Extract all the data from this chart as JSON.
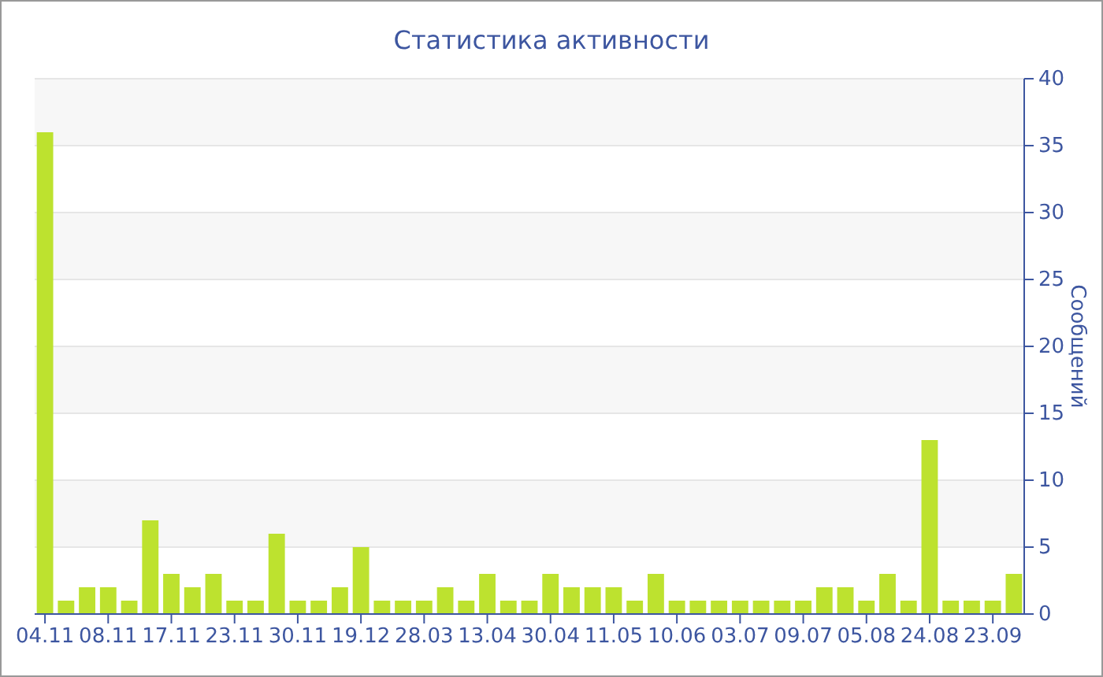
{
  "chart_data": {
    "type": "bar",
    "title": "Статистика активности",
    "ylabel": "Сообщений",
    "categories": [
      "04.11",
      null,
      null,
      "08.11",
      null,
      null,
      "17.11",
      null,
      null,
      "23.11",
      null,
      null,
      "30.11",
      null,
      null,
      "19.12",
      null,
      null,
      "28.03",
      null,
      null,
      "13.04",
      null,
      null,
      "30.04",
      null,
      null,
      "11.05",
      null,
      null,
      "10.06",
      null,
      null,
      "03.07",
      null,
      null,
      "09.07",
      null,
      null,
      "05.08",
      null,
      null,
      "24.08",
      null,
      null,
      "23.09",
      null
    ],
    "values": [
      36,
      1,
      2,
      2,
      1,
      7,
      3,
      2,
      3,
      1,
      1,
      6,
      1,
      1,
      2,
      5,
      1,
      1,
      1,
      2,
      1,
      3,
      1,
      1,
      3,
      2,
      2,
      2,
      1,
      3,
      1,
      1,
      1,
      1,
      1,
      1,
      1,
      2,
      2,
      1,
      3,
      1,
      13,
      1,
      1,
      1,
      3
    ],
    "color": "#bde22f",
    "ylim": [
      0,
      40
    ],
    "yticks": [
      0,
      5,
      10,
      15,
      20,
      25,
      30,
      35,
      40
    ],
    "grid": "y"
  }
}
